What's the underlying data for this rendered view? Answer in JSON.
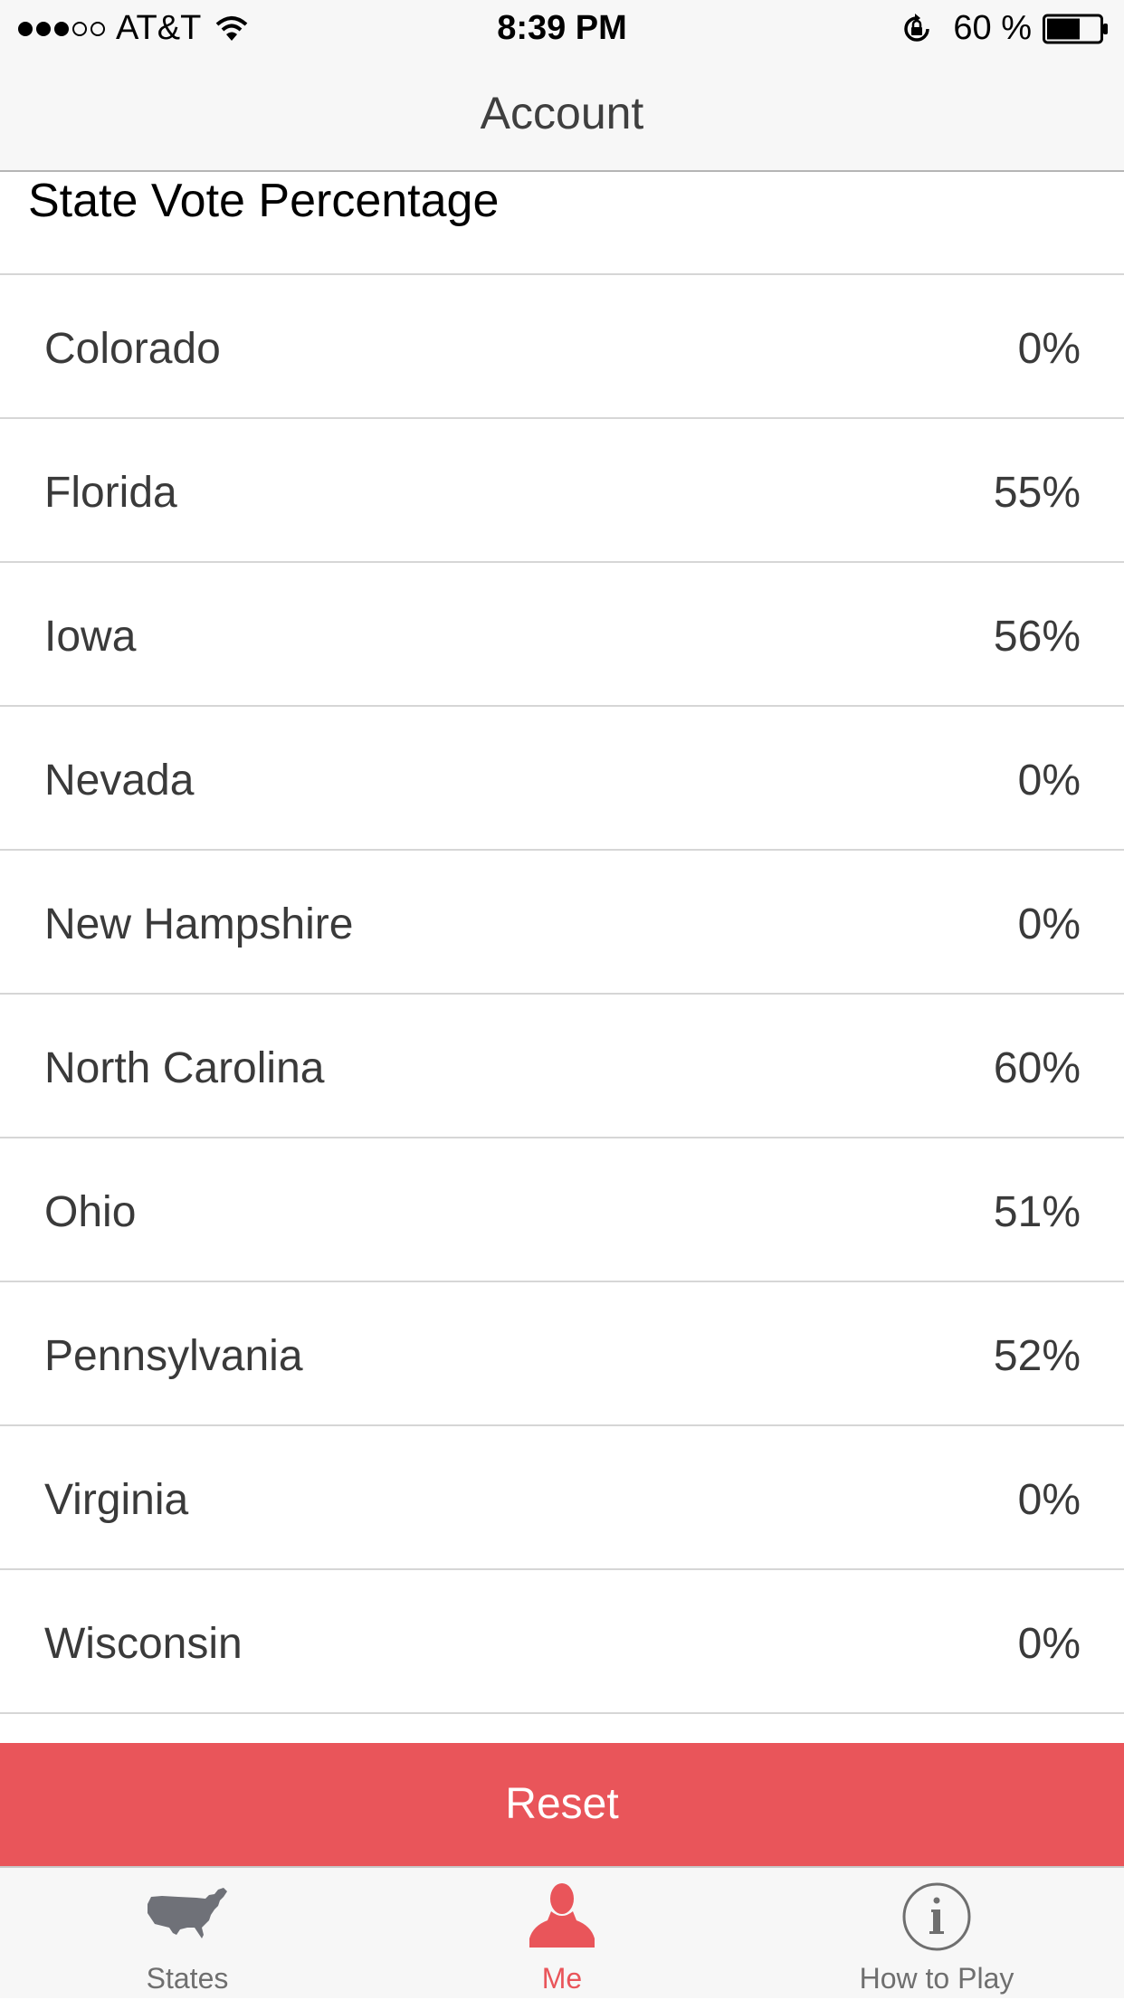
{
  "status_bar": {
    "carrier": "AT&T",
    "time": "8:39 PM",
    "battery_percent": "60 %",
    "signal_bars_filled": 3,
    "signal_bars_total": 5
  },
  "nav": {
    "title": "Account"
  },
  "section": {
    "title": "State Vote Percentage"
  },
  "rows": [
    {
      "state": "Colorado",
      "value": "0%"
    },
    {
      "state": "Florida",
      "value": "55%"
    },
    {
      "state": "Iowa",
      "value": "56%"
    },
    {
      "state": "Nevada",
      "value": "0%"
    },
    {
      "state": "New Hampshire",
      "value": "0%"
    },
    {
      "state": "North Carolina",
      "value": "60%"
    },
    {
      "state": "Ohio",
      "value": "51%"
    },
    {
      "state": "Pennsylvania",
      "value": "52%"
    },
    {
      "state": "Virginia",
      "value": "0%"
    },
    {
      "state": "Wisconsin",
      "value": "0%"
    }
  ],
  "reset_label": "Reset",
  "tabs": [
    {
      "label": "States",
      "icon": "us-map-icon",
      "active": false
    },
    {
      "label": "Me",
      "icon": "person-icon",
      "active": true
    },
    {
      "label": "How to Play",
      "icon": "info-icon",
      "active": false
    }
  ],
  "colors": {
    "accent": "#e9555a",
    "inactive_tab": "#6f6f6f",
    "bar_bg": "#f7f7f7"
  }
}
